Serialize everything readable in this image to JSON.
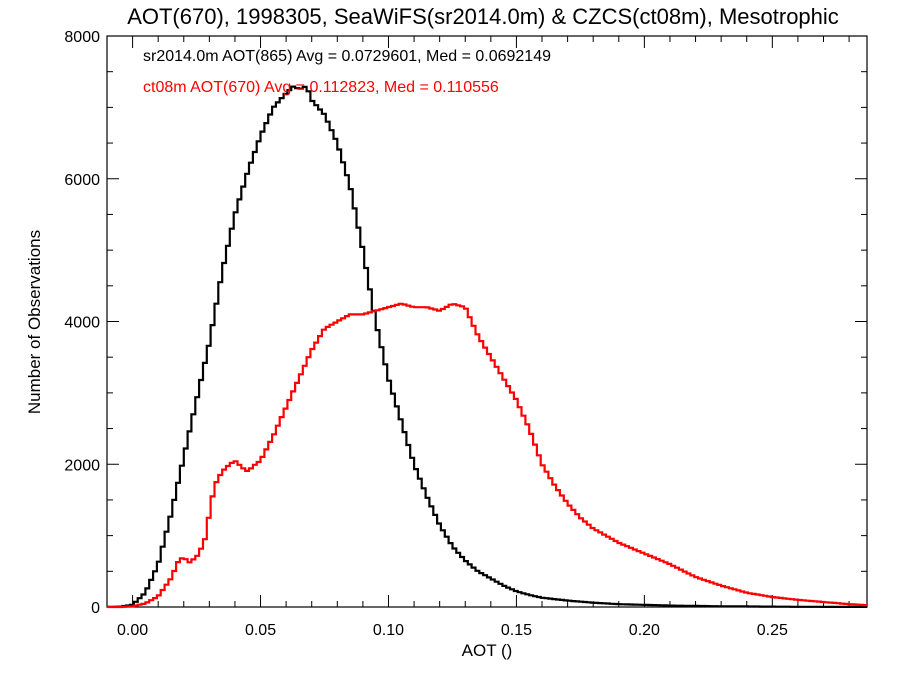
{
  "chart_data": {
    "type": "line",
    "title": "AOT(670), 1998305, SeaWiFS(sr2014.0m) & CZCS(ct08m), Mesotrophic",
    "xlabel": "AOT ()",
    "ylabel": "Number of Observations",
    "xlim": [
      -0.01,
      0.287
    ],
    "ylim": [
      0,
      8000
    ],
    "x_ticks": [
      0.0,
      0.05,
      0.1,
      0.15,
      0.2,
      0.25
    ],
    "x_tick_labels": [
      "0.00",
      "0.05",
      "0.10",
      "0.15",
      "0.20",
      "0.25"
    ],
    "y_ticks": [
      0,
      2000,
      4000,
      6000,
      8000
    ],
    "y_tick_labels": [
      "0",
      "2000",
      "4000",
      "6000",
      "8000"
    ],
    "grid": false,
    "step": true,
    "annotations": [
      {
        "text": "sr2014.0m AOT(865) Avg = 0.0729601, Med = 0.0692149",
        "color": "#000000"
      },
      {
        "text": "ct08m AOT(670) Avg = 0.112823, Med = 0.110556",
        "color": "#ff0000"
      }
    ],
    "series": [
      {
        "color": "#000000",
        "x": [
          -0.01,
          -0.005,
          0.0,
          0.005,
          0.01,
          0.015,
          0.02,
          0.025,
          0.03,
          0.035,
          0.04,
          0.045,
          0.05,
          0.055,
          0.06,
          0.063,
          0.065,
          0.068,
          0.07,
          0.075,
          0.08,
          0.085,
          0.09,
          0.095,
          0.1,
          0.105,
          0.11,
          0.115,
          0.12,
          0.125,
          0.13,
          0.135,
          0.14,
          0.145,
          0.15,
          0.155,
          0.16,
          0.17,
          0.18,
          0.19,
          0.2,
          0.21,
          0.22,
          0.23,
          0.24,
          0.25,
          0.26,
          0.27,
          0.287
        ],
        "y": [
          0,
          5,
          30,
          200,
          600,
          1300,
          2100,
          2900,
          3700,
          4700,
          5500,
          6100,
          6600,
          7000,
          7200,
          7300,
          7250,
          7300,
          7100,
          6900,
          6500,
          5900,
          5000,
          4000,
          3200,
          2600,
          2000,
          1550,
          1150,
          850,
          650,
          500,
          400,
          300,
          220,
          170,
          130,
          90,
          60,
          40,
          30,
          20,
          15,
          10,
          8,
          5,
          3,
          2,
          1
        ]
      },
      {
        "color": "#ff0000",
        "x": [
          -0.01,
          -0.005,
          0.0,
          0.005,
          0.01,
          0.015,
          0.018,
          0.02,
          0.022,
          0.025,
          0.028,
          0.03,
          0.032,
          0.035,
          0.038,
          0.04,
          0.043,
          0.045,
          0.048,
          0.05,
          0.055,
          0.06,
          0.065,
          0.07,
          0.075,
          0.08,
          0.085,
          0.09,
          0.095,
          0.1,
          0.105,
          0.11,
          0.115,
          0.12,
          0.125,
          0.13,
          0.135,
          0.14,
          0.145,
          0.15,
          0.155,
          0.16,
          0.165,
          0.17,
          0.175,
          0.18,
          0.19,
          0.2,
          0.21,
          0.22,
          0.23,
          0.24,
          0.25,
          0.26,
          0.27,
          0.28,
          0.287
        ],
        "y": [
          0,
          0,
          10,
          50,
          150,
          400,
          650,
          700,
          620,
          700,
          900,
          1300,
          1700,
          1900,
          2000,
          2050,
          1950,
          1900,
          2000,
          2050,
          2400,
          2800,
          3200,
          3600,
          3900,
          4000,
          4100,
          4100,
          4150,
          4200,
          4250,
          4200,
          4200,
          4150,
          4250,
          4200,
          3800,
          3500,
          3200,
          2900,
          2500,
          2000,
          1700,
          1450,
          1250,
          1100,
          900,
          750,
          600,
          420,
          300,
          200,
          140,
          100,
          70,
          40,
          25
        ]
      }
    ]
  }
}
